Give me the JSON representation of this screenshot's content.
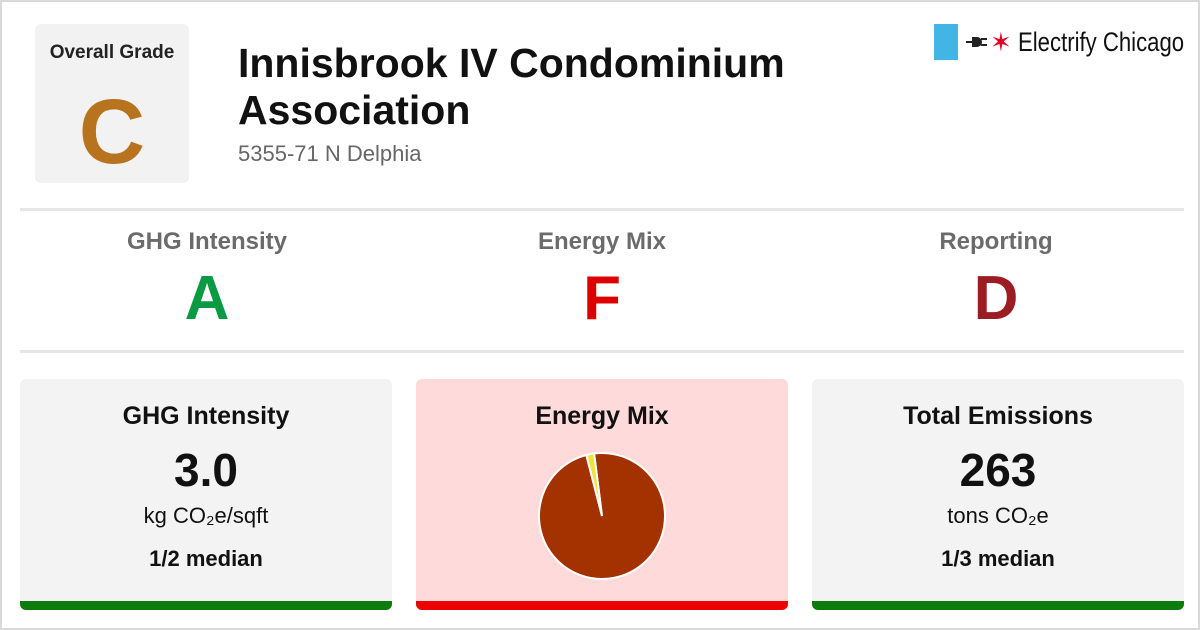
{
  "overall": {
    "label": "Overall Grade",
    "grade": "C",
    "color": "#b8731f"
  },
  "building": {
    "name": "Innisbrook IV Condominium Association",
    "address": "5355-71 N Delphia"
  },
  "brand": {
    "name": "Electrify Chicago",
    "flag_color": "#41b6e6",
    "star_color": "#e4002b",
    "icons": [
      "plug-icon",
      "chicago-star-icon"
    ]
  },
  "sub_grades": [
    {
      "label": "GHG Intensity",
      "grade": "A",
      "color": "#0a9a44"
    },
    {
      "label": "Energy Mix",
      "grade": "F",
      "color": "#dd0000"
    },
    {
      "label": "Reporting",
      "grade": "D",
      "color": "#9b1c22"
    }
  ],
  "cards": [
    {
      "title": "GHG Intensity",
      "value": "3.0",
      "unit": "kg CO₂e/sqft",
      "median": "1/2 median",
      "bar_color": "#0c7c0c",
      "background": "#f3f3f3"
    },
    {
      "title": "Energy Mix",
      "bar_color": "#ee0000",
      "background": "#ffdada"
    },
    {
      "title": "Total Emissions",
      "value": "263",
      "unit": "tons CO₂e",
      "median": "1/3 median",
      "bar_color": "#0c7c0c",
      "background": "#f3f3f3"
    }
  ],
  "chart_data": {
    "type": "pie",
    "slices": [
      {
        "value": 98,
        "color": "#a33200"
      },
      {
        "value": 2,
        "color": "#f1e23a"
      }
    ]
  }
}
